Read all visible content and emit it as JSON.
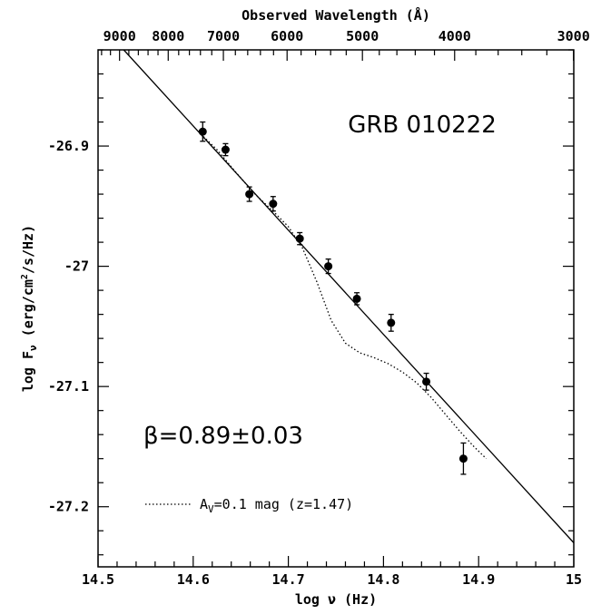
{
  "chart_data": {
    "type": "scatter",
    "title": "GRB 010222",
    "xlabel": "log ν (Hz)",
    "ylabel": "log F_ν (erg/cm²/s/Hz)",
    "top_axis_label": "Observed Wavelength (Å)",
    "xlim": [
      14.5,
      15.0
    ],
    "ylim": [
      -27.25,
      -26.82
    ],
    "x_ticks": [
      14.5,
      14.6,
      14.7,
      14.8,
      14.9,
      15.0
    ],
    "x_tick_labels": [
      "14.5",
      "14.6",
      "14.7",
      "14.8",
      "14.9",
      "15"
    ],
    "y_ticks": [
      -26.9,
      -27.0,
      -27.1,
      -27.2
    ],
    "y_tick_labels": [
      "-26.9",
      "-27",
      "-27.1",
      "-27.2"
    ],
    "top_ticks_angstrom": [
      9000,
      8000,
      7000,
      6000,
      5000,
      4000,
      3000
    ],
    "top_tick_labels": [
      "9000",
      "8000",
      "7000",
      "6000",
      "5000",
      "4000",
      "3000"
    ],
    "annotation_beta": "β=0.89±0.03",
    "legend_text": "A_V=0.1 mag (z=1.47)",
    "legend_main": "A",
    "legend_sub": "V",
    "legend_rest": "=0.1 mag (z=1.47)",
    "ylabel_parts": {
      "a": "log F",
      "sub": "ν",
      "b": " (erg/cm",
      "sup": "2",
      "c": "/s/Hz)"
    },
    "series": [
      {
        "type": "scatter",
        "points": [
          {
            "x": 14.61,
            "y": -26.888,
            "err": 0.008
          },
          {
            "x": 14.634,
            "y": -26.903,
            "err": 0.005
          },
          {
            "x": 14.659,
            "y": -26.94,
            "err": 0.006
          },
          {
            "x": 14.684,
            "y": -26.948,
            "err": 0.006
          },
          {
            "x": 14.712,
            "y": -26.977,
            "err": 0.005
          },
          {
            "x": 14.742,
            "y": -27.0,
            "err": 0.006
          },
          {
            "x": 14.772,
            "y": -27.027,
            "err": 0.005
          },
          {
            "x": 14.808,
            "y": -27.047,
            "err": 0.007
          },
          {
            "x": 14.845,
            "y": -27.096,
            "err": 0.007
          },
          {
            "x": 14.884,
            "y": -27.16,
            "err": 0.013
          }
        ]
      },
      {
        "type": "line",
        "style": "solid",
        "points": [
          {
            "x": 14.527,
            "y": -26.82
          },
          {
            "x": 15.0,
            "y": -27.23
          }
        ]
      },
      {
        "type": "line",
        "style": "dotted",
        "points": [
          {
            "x": 14.608,
            "y": -26.89
          },
          {
            "x": 14.625,
            "y": -26.903
          },
          {
            "x": 14.645,
            "y": -26.922
          },
          {
            "x": 14.665,
            "y": -26.94
          },
          {
            "x": 14.685,
            "y": -26.955
          },
          {
            "x": 14.7,
            "y": -26.967
          },
          {
            "x": 14.715,
            "y": -26.985
          },
          {
            "x": 14.73,
            "y": -27.013
          },
          {
            "x": 14.745,
            "y": -27.045
          },
          {
            "x": 14.76,
            "y": -27.064
          },
          {
            "x": 14.775,
            "y": -27.072
          },
          {
            "x": 14.79,
            "y": -27.076
          },
          {
            "x": 14.805,
            "y": -27.081
          },
          {
            "x": 14.82,
            "y": -27.088
          },
          {
            "x": 14.835,
            "y": -27.097
          },
          {
            "x": 14.85,
            "y": -27.109
          },
          {
            "x": 14.865,
            "y": -27.123
          },
          {
            "x": 14.88,
            "y": -27.137
          },
          {
            "x": 14.895,
            "y": -27.15
          },
          {
            "x": 14.908,
            "y": -27.16
          }
        ]
      }
    ]
  }
}
